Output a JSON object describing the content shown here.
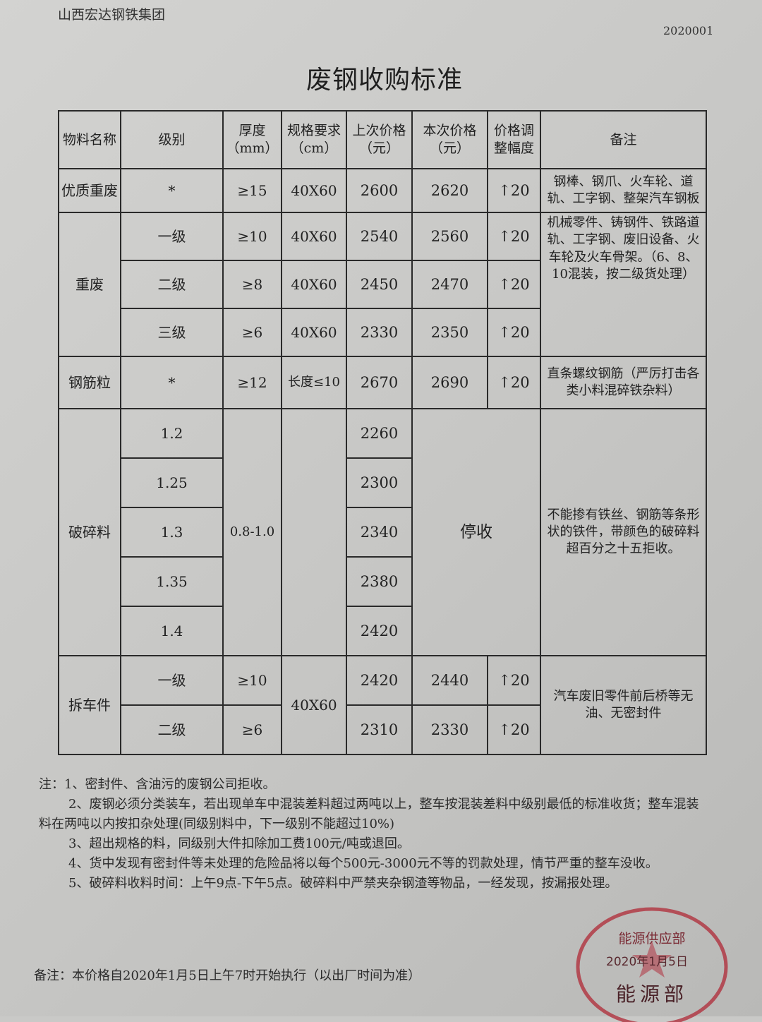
{
  "header": {
    "company": "山西宏达钢铁集团",
    "doc_number": "2020001",
    "title": "废钢收购标准"
  },
  "table": {
    "columns": [
      "物料名称",
      "级别",
      "厚度（mm）",
      "规格要求（cm）",
      "上次价格（元）",
      "本次价格（元）",
      "价格调整幅度",
      "备注"
    ],
    "rows": {
      "premium": {
        "name": "优质重废",
        "grade": "*",
        "thickness": "≥15",
        "spec": "40X60",
        "last": "2600",
        "current": "2620",
        "change": "↑20",
        "remark": "钢棒、钢爪、火车轮、道轨、工字钢、整架汽车钢板"
      },
      "heavy": {
        "name": "重废",
        "remark": "机械零件、铸钢件、铁路道轨、工字钢、废旧设备、火车轮及火车骨架。（6、8、10混装，按二级货处理）",
        "items": [
          {
            "grade": "一级",
            "thickness": "≥10",
            "spec": "40X60",
            "last": "2540",
            "current": "2560",
            "change": "↑20"
          },
          {
            "grade": "二级",
            "thickness": "≥8",
            "spec": "40X60",
            "last": "2450",
            "current": "2470",
            "change": "↑20"
          },
          {
            "grade": "三级",
            "thickness": "≥6",
            "spec": "40X60",
            "last": "2330",
            "current": "2350",
            "change": "↑20"
          }
        ]
      },
      "rebar": {
        "name": "钢筋粒",
        "grade": "*",
        "thickness": "≥12",
        "spec": "长度≤10",
        "last": "2670",
        "current": "2690",
        "change": "↑20",
        "remark": "直条螺纹钢筋（严厉打击各类小料混碎铁杂料）"
      },
      "shredded": {
        "name": "破碎料",
        "thickness": "0.8-1.0",
        "status": "停收",
        "remark": "不能掺有铁丝、钢筋等条形状的铁件，带颜色的破碎料超百分之十五拒收。",
        "items": [
          {
            "grade": "1.2",
            "last": "2260"
          },
          {
            "grade": "1.25",
            "last": "2300"
          },
          {
            "grade": "1.3",
            "last": "2340"
          },
          {
            "grade": "1.35",
            "last": "2380"
          },
          {
            "grade": "1.4",
            "last": "2420"
          }
        ]
      },
      "dismantled": {
        "name": "拆车件",
        "spec": "40X60",
        "remark": "汽车废旧零件前后桥等无油、无密封件",
        "items": [
          {
            "grade": "一级",
            "thickness": "≥10",
            "last": "2420",
            "current": "2440",
            "change": "↑20"
          },
          {
            "grade": "二级",
            "thickness": "≥6",
            "last": "2310",
            "current": "2330",
            "change": "↑20"
          }
        ]
      }
    }
  },
  "notes": [
    "注：1、密封件、含油污的废钢公司拒收。",
    "2、废钢必须分类装车，若出现单车中混装差料超过两吨以上，整车按混装差料中级别最低的标准收货；整车混装料在两吨以内按扣杂处理(同级别料中，下一级别不能超过10%)",
    "3、超出规格的料，同级别大件扣除加工费100元/吨或退回。",
    "4、货中发现有密封件等未处理的危险品将以每个500元-3000元不等的罚款处理，情节严重的整车没收。",
    "5、破碎料收料时间：上午9点-下午5点。破碎料中严禁夹杂钢渣等物品，一经发现，按漏报处理。"
  ],
  "footer": "备注：本价格自2020年1月5日上午7时开始执行（以出厂时间为准）",
  "stamp": {
    "dept": "能源供应部",
    "date": "2020年1月5日",
    "bottom": "能源部",
    "color": "#b0323f"
  }
}
